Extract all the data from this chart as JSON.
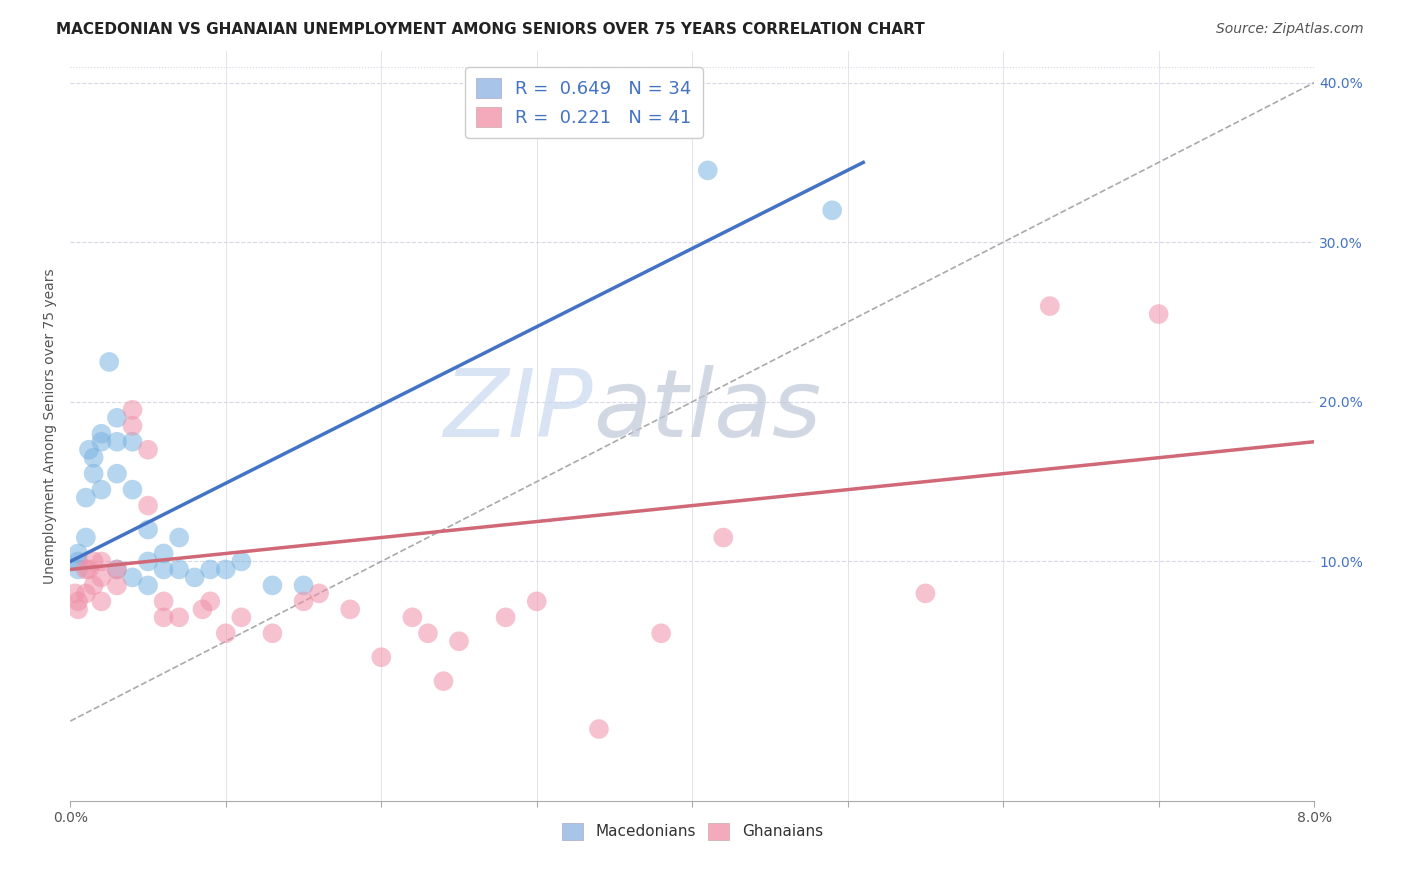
{
  "title": "MACEDONIAN VS GHANAIAN UNEMPLOYMENT AMONG SENIORS OVER 75 YEARS CORRELATION CHART",
  "source": "Source: ZipAtlas.com",
  "ylabel": "Unemployment Among Seniors over 75 years",
  "xlim": [
    0.0,
    0.08
  ],
  "ylim": [
    -0.05,
    0.42
  ],
  "x_ticks": [
    0.0,
    0.01,
    0.02,
    0.03,
    0.04,
    0.05,
    0.06,
    0.07,
    0.08
  ],
  "y_ticks": [
    0.1,
    0.2,
    0.3,
    0.4
  ],
  "macedonian_x": [
    0.0005,
    0.0005,
    0.0005,
    0.001,
    0.001,
    0.0012,
    0.0015,
    0.0015,
    0.002,
    0.002,
    0.002,
    0.0025,
    0.003,
    0.003,
    0.003,
    0.003,
    0.004,
    0.004,
    0.004,
    0.005,
    0.005,
    0.005,
    0.006,
    0.006,
    0.007,
    0.007,
    0.008,
    0.009,
    0.01,
    0.011,
    0.013,
    0.015,
    0.041,
    0.049
  ],
  "macedonian_y": [
    0.1,
    0.105,
    0.095,
    0.115,
    0.14,
    0.17,
    0.165,
    0.155,
    0.18,
    0.175,
    0.145,
    0.225,
    0.19,
    0.175,
    0.155,
    0.095,
    0.175,
    0.145,
    0.09,
    0.12,
    0.1,
    0.085,
    0.095,
    0.105,
    0.115,
    0.095,
    0.09,
    0.095,
    0.095,
    0.1,
    0.085,
    0.085,
    0.345,
    0.32
  ],
  "macedonian_line_x": [
    0.0,
    0.051
  ],
  "macedonian_line_y": [
    0.1,
    0.35
  ],
  "ghanaian_x": [
    0.0003,
    0.0005,
    0.0005,
    0.001,
    0.001,
    0.0012,
    0.0015,
    0.0015,
    0.002,
    0.002,
    0.002,
    0.003,
    0.003,
    0.004,
    0.004,
    0.005,
    0.005,
    0.006,
    0.006,
    0.007,
    0.0085,
    0.009,
    0.01,
    0.011,
    0.013,
    0.015,
    0.016,
    0.018,
    0.02,
    0.022,
    0.023,
    0.024,
    0.025,
    0.028,
    0.03,
    0.034,
    0.038,
    0.042,
    0.055,
    0.063,
    0.07
  ],
  "ghanaian_y": [
    0.08,
    0.075,
    0.07,
    0.095,
    0.08,
    0.095,
    0.1,
    0.085,
    0.1,
    0.09,
    0.075,
    0.095,
    0.085,
    0.195,
    0.185,
    0.17,
    0.135,
    0.075,
    0.065,
    0.065,
    0.07,
    0.075,
    0.055,
    0.065,
    0.055,
    0.075,
    0.08,
    0.07,
    0.04,
    0.065,
    0.055,
    0.025,
    0.05,
    0.065,
    0.075,
    -0.005,
    0.055,
    0.115,
    0.08,
    0.26,
    0.255
  ],
  "ghanaian_line_x": [
    0.0,
    0.08
  ],
  "ghanaian_line_y": [
    0.095,
    0.175
  ],
  "dashed_line_x": [
    0.0,
    0.09
  ],
  "dashed_line_y": [
    0.0,
    0.45
  ],
  "macedonian_color": "#7ab3e0",
  "ghanaian_color": "#f090a8",
  "macedonian_line_color": "#4472c4",
  "ghanaian_line_color": "#d06878",
  "dashed_line_color": "#aaaaaa",
  "background_color": "#ffffff",
  "grid_color": "#d8d8e8",
  "legend_box_mac_color": "#a8c4e8",
  "legend_box_gha_color": "#f4aabb",
  "watermark_zip": "ZIP",
  "watermark_atlas": "atlas",
  "watermark_color_zip": "#c8d8f0",
  "watermark_color_atlas": "#c0c8d8",
  "title_fontsize": 11,
  "label_fontsize": 10,
  "legend_fontsize": 13,
  "tick_fontsize": 10,
  "source_fontsize": 10,
  "right_tick_color": "#4472c4"
}
